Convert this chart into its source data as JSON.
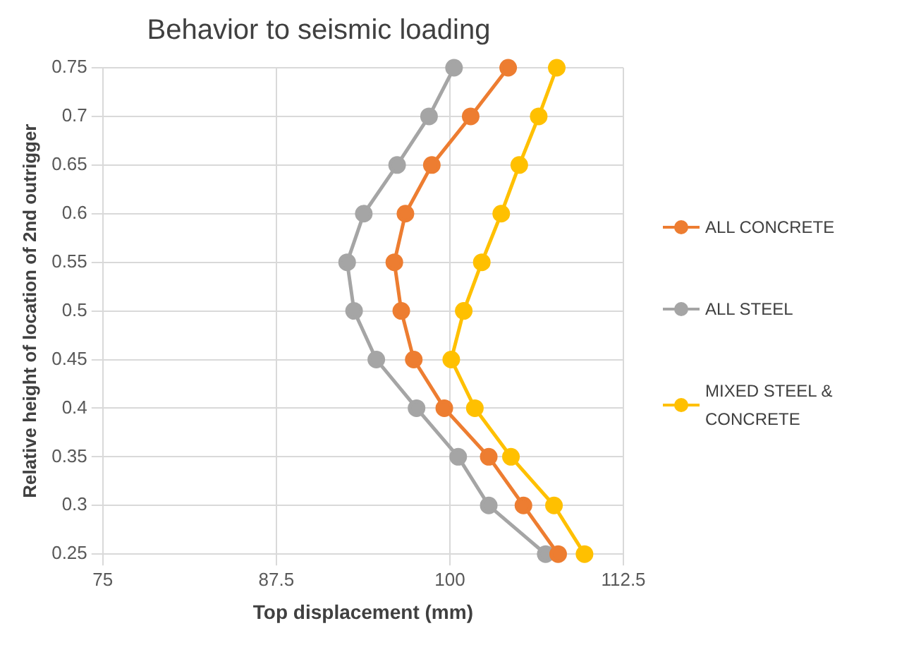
{
  "chart_data": {
    "type": "line",
    "orientation": "horizontal",
    "title": "Behavior to seismic loading",
    "xlabel": "Top displacement (mm)",
    "ylabel": "Relative height of location of 2nd outrigger",
    "categories": [
      "0.75",
      "0.7",
      "0.65",
      "0.6",
      "0.55",
      "0.5",
      "0.45",
      "0.4",
      "0.35",
      "0.3",
      "0.25"
    ],
    "series": [
      {
        "name": "ALL CONCRETE",
        "color": "#ed7d31",
        "values": [
          104.2,
          101.5,
          98.7,
          96.8,
          96.0,
          96.5,
          97.4,
          99.6,
          102.8,
          105.3,
          107.8
        ]
      },
      {
        "name": "ALL STEEL",
        "color": "#a5a5a5",
        "values": [
          100.3,
          98.5,
          96.2,
          93.8,
          92.6,
          93.1,
          94.7,
          97.6,
          100.6,
          102.8,
          106.9
        ]
      },
      {
        "name": "MIXED STEEL & CONCRETE",
        "color": "#ffc000",
        "values": [
          107.7,
          106.4,
          105.0,
          103.7,
          102.3,
          101.0,
          100.1,
          101.8,
          104.4,
          107.5,
          109.7
        ]
      }
    ],
    "xlim": [
      75,
      112.5
    ],
    "xticks": [
      75,
      87.5,
      100,
      112.5
    ],
    "grid": true,
    "legend": "right",
    "marker": "circle",
    "line_style": "solid"
  }
}
